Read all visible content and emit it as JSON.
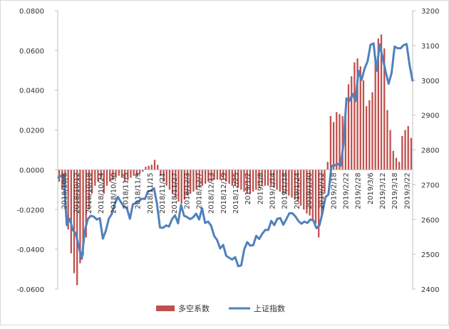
{
  "chart_data": {
    "type": "bar+line",
    "colors": {
      "bar": "#c0504d",
      "line": "#4f81bd",
      "axis": "#bfbfbf"
    },
    "left_axis": {
      "range": [
        -0.06,
        0.08
      ],
      "ticks": [
        0.08,
        0.06,
        0.04,
        0.02,
        0.0,
        -0.02,
        -0.04,
        -0.06
      ],
      "tick_labels": [
        "0.0800",
        "0.0600",
        "0.0400",
        "0.0200",
        "0.0000",
        "-0.0200",
        "-0.0400",
        "-0.0600"
      ]
    },
    "right_axis": {
      "range": [
        2400,
        3200
      ],
      "ticks": [
        3200,
        3100,
        3000,
        2900,
        2800,
        2700,
        2600,
        2500,
        2400
      ],
      "tick_labels": [
        "3200",
        "3100",
        "3000",
        "2900",
        "2800",
        "2700",
        "2600",
        "2500",
        "2400"
      ]
    },
    "x_tick_labels": [
      "2018/10/8",
      "2018/10/12",
      "2018/10/18",
      "2018/10/24",
      "2018/10/30",
      "2018/11/5",
      "2018/11/9",
      "2018/11/15",
      "2018/11/21",
      "2018/11/27",
      "2018/12/3",
      "2018/12/7",
      "2018/12/13",
      "2018/12/19",
      "2018/12/25",
      "2019/1/2",
      "2019/1/8",
      "2019/1/14",
      "2019/1/18",
      "2019/1/24",
      "2019/1/30",
      "2019/2/12",
      "2019/2/18",
      "2019/2/22",
      "2019/2/28",
      "2019/3/6",
      "2019/3/12",
      "2019/3/18",
      "2019/3/22"
    ],
    "bar_series": {
      "name": "多空系数",
      "values": [
        -0.006,
        -0.01,
        -0.02,
        -0.03,
        -0.042,
        -0.052,
        -0.058,
        -0.047,
        -0.043,
        -0.034,
        -0.02,
        -0.012,
        -0.008,
        -0.006,
        -0.005,
        -0.012,
        -0.008,
        -0.006,
        -0.005,
        -0.004,
        -0.003,
        -0.004,
        -0.006,
        -0.005,
        -0.004,
        -0.003,
        -0.003,
        -0.002,
        -0.001,
        0.0015,
        0.002,
        0.0025,
        0.005,
        0.0025,
        -0.003,
        -0.006,
        -0.008,
        -0.01,
        -0.012,
        -0.014,
        -0.016,
        -0.017,
        -0.015,
        -0.013,
        -0.012,
        -0.011,
        -0.01,
        -0.009,
        -0.008,
        -0.007,
        -0.006,
        -0.006,
        -0.005,
        -0.005,
        -0.005,
        -0.005,
        -0.006,
        -0.007,
        -0.008,
        -0.008,
        -0.009,
        -0.01,
        -0.011,
        -0.012,
        -0.012,
        -0.011,
        -0.01,
        -0.009,
        -0.008,
        -0.008,
        -0.008,
        -0.008,
        -0.009,
        -0.01,
        -0.011,
        -0.012,
        -0.012,
        -0.013,
        -0.014,
        -0.015,
        -0.016,
        -0.018,
        -0.02,
        -0.022,
        -0.023,
        -0.025,
        -0.027,
        -0.034,
        -0.024,
        -0.012,
        0.004,
        0.027,
        0.024,
        0.029,
        0.028,
        0.027,
        0.03,
        0.043,
        0.047,
        0.054,
        0.056,
        0.052,
        0.045,
        0.032,
        0.035,
        0.039,
        0.057,
        0.066,
        0.068,
        0.061,
        0.03,
        0.02,
        0.0095,
        0.006,
        0.004,
        0.017,
        0.02,
        0.022,
        0.016
      ]
    },
    "line_series": {
      "name": "上证指数",
      "values": [
        2720,
        2725,
        2727,
        2584,
        2602,
        2570,
        2560,
        2522,
        2487,
        2568,
        2601,
        2611,
        2608,
        2600,
        2604,
        2545,
        2568,
        2603,
        2616,
        2646,
        2665,
        2650,
        2637,
        2632,
        2602,
        2644,
        2647,
        2653,
        2660,
        2659,
        2681,
        2683,
        2690,
        2645,
        2577,
        2576,
        2583,
        2580,
        2601,
        2612,
        2589,
        2642,
        2611,
        2607,
        2601,
        2606,
        2617,
        2600,
        2632,
        2590,
        2594,
        2582,
        2553,
        2541,
        2517,
        2527,
        2496,
        2490,
        2485,
        2492,
        2466,
        2468,
        2514,
        2535,
        2525,
        2526,
        2553,
        2544,
        2559,
        2570,
        2570,
        2596,
        2584,
        2602,
        2604,
        2585,
        2601,
        2618,
        2618,
        2609,
        2596,
        2588,
        2594,
        2590,
        2600,
        2597,
        2575,
        2583,
        2618,
        2664,
        2672,
        2754,
        2755,
        2760,
        2754,
        2816,
        2948,
        2941,
        2961,
        2940,
        3027,
        3001,
        3033,
        3054,
        3102,
        3106,
        3027,
        3103,
        3066,
        3026,
        2990,
        3021,
        3097,
        3092,
        3092,
        3101,
        3104,
        3043,
        2997
      ]
    },
    "legend": {
      "position": "bottom",
      "entries": [
        "多空系数",
        "上证指数"
      ]
    },
    "grid": false
  }
}
